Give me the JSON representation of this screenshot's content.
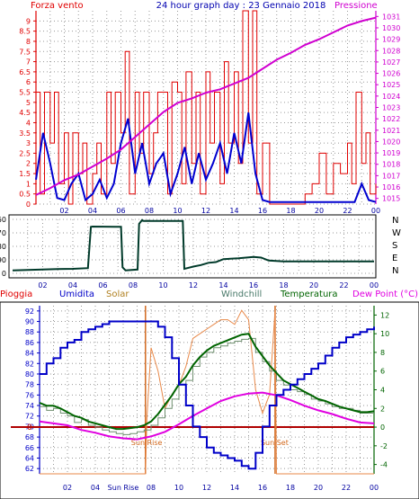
{
  "colors": {
    "wind": "#e00000",
    "wind_avg": "#0000d0",
    "pressure": "#d000d0",
    "direction": "#003a2a",
    "humidity": "#0000c8",
    "solar": "#e8894a",
    "windchill": "#6f8f6f",
    "temperature": "#006400",
    "dew_point": "#e000e0",
    "zero_line": "#b00000",
    "sun_marker": "#d2691e",
    "grid": "#9a9a9a"
  },
  "chart_data": [
    {
      "type": "line",
      "id": "wind_pressure",
      "title": "24 hour graph day : 23 Gennaio 2018",
      "left_axis_title": "Forza vento",
      "right_axis_title": "Pressione",
      "left_ylim": [
        0,
        9.5
      ],
      "left_ticks": [
        "0",
        "0.5",
        "1",
        "1.5",
        "2",
        "2.5",
        "3",
        "3.5",
        "4",
        "4.5",
        "5",
        "5.5",
        "6",
        "6.5",
        "7",
        "7.5",
        "8",
        "8.5",
        "9"
      ],
      "right_ylim": [
        1014.5,
        1031.5
      ],
      "right_ticks": [
        "1015",
        "1016",
        "1017",
        "1018",
        "1019",
        "1020",
        "1021",
        "1022",
        "1023",
        "1024",
        "1025",
        "1026",
        "1027",
        "1028",
        "1029",
        "1030",
        "1031"
      ],
      "x_ticks": [
        "02",
        "04",
        "06",
        "08",
        "10",
        "12",
        "14",
        "16",
        "18",
        "20",
        "22",
        "00"
      ],
      "grid": true,
      "series": [
        {
          "key": "pressure",
          "x": [
            0,
            1,
            2,
            3,
            4,
            5,
            6,
            7,
            8,
            9,
            10,
            11,
            12,
            13,
            14,
            15,
            16,
            17,
            18,
            19,
            20,
            21,
            22,
            23,
            24
          ],
          "values": [
            1015.3,
            1015.9,
            1016.6,
            1017.1,
            1017.8,
            1018.5,
            1019.3,
            1020.4,
            1021.5,
            1022.6,
            1023.4,
            1023.8,
            1024.3,
            1024.6,
            1025.1,
            1025.6,
            1026.4,
            1027.2,
            1027.8,
            1028.5,
            1029.0,
            1029.6,
            1030.2,
            1030.6,
            1030.9
          ]
        },
        {
          "key": "wind_avg",
          "x": [
            0,
            0.5,
            1,
            1.5,
            2,
            2.5,
            3,
            3.5,
            4,
            4.5,
            5,
            5.5,
            6,
            6.5,
            7,
            7.5,
            8,
            8.5,
            9,
            9.5,
            10,
            10.5,
            11,
            11.5,
            12,
            12.5,
            13,
            13.5,
            14,
            14.5,
            15,
            15.5,
            16,
            16.5,
            17,
            18,
            19,
            20,
            21,
            22,
            22.5,
            23,
            23.5,
            24
          ],
          "values": [
            1.2,
            3.5,
            2.0,
            0.3,
            0.2,
            1.0,
            1.5,
            0.2,
            0.5,
            1.2,
            0.3,
            1.0,
            3.0,
            4.2,
            1.5,
            3.0,
            1.0,
            2.0,
            2.5,
            0.5,
            1.5,
            2.8,
            1.0,
            2.5,
            1.2,
            2.0,
            3.0,
            1.5,
            3.5,
            2.0,
            4.5,
            1.5,
            0.2,
            0.1,
            0.1,
            0.1,
            0.1,
            0.1,
            0.1,
            0.1,
            0.1,
            1.0,
            0.2,
            0.1
          ]
        },
        {
          "key": "wind_gust",
          "x": [
            0,
            0.3,
            0.6,
            1,
            1.3,
            1.6,
            2,
            2.3,
            2.6,
            3,
            3.3,
            3.6,
            4,
            4.3,
            4.6,
            5,
            5.3,
            5.6,
            6,
            6.3,
            6.6,
            7,
            7.3,
            7.6,
            8,
            8.3,
            8.6,
            9,
            9.3,
            9.6,
            10,
            10.3,
            10.6,
            11,
            11.3,
            11.6,
            12,
            12.3,
            12.6,
            13,
            13.3,
            13.6,
            14,
            14.3,
            14.6,
            15,
            15.3,
            15.6,
            16,
            16.5,
            17,
            17.5,
            18,
            18.5,
            19,
            19.5,
            20,
            20.5,
            21,
            21.5,
            22,
            22.3,
            22.6,
            23,
            23.3,
            23.6,
            24
          ],
          "values": [
            5.5,
            0.5,
            5.5,
            3.0,
            5.5,
            1.0,
            3.5,
            0.0,
            3.5,
            1.5,
            3.0,
            0.0,
            1.5,
            3.0,
            0.5,
            5.5,
            2.0,
            5.5,
            3.5,
            7.5,
            0.5,
            5.5,
            2.5,
            5.5,
            1.5,
            3.5,
            5.5,
            5.5,
            0.5,
            6.0,
            5.5,
            1.0,
            6.5,
            2.0,
            5.5,
            0.5,
            6.5,
            3.0,
            5.5,
            1.0,
            7.0,
            3.0,
            6.5,
            2.0,
            9.5,
            3.0,
            9.5,
            0.5,
            3.0,
            0.0,
            0.0,
            0.0,
            0.0,
            0.0,
            0.5,
            1.0,
            2.5,
            0.5,
            2.0,
            1.5,
            3.0,
            1.0,
            5.5,
            2.0,
            3.5,
            0.5,
            1.0
          ]
        }
      ]
    },
    {
      "type": "line",
      "id": "wind_direction",
      "left_ylim": [
        0,
        360
      ],
      "left_ticks": [
        "0",
        "90",
        "180",
        "270",
        "360"
      ],
      "right_labels": [
        "N",
        "W",
        "S",
        "E",
        "N"
      ],
      "x_ticks": [
        "02",
        "04",
        "06",
        "08",
        "10",
        "12",
        "14",
        "16",
        "18",
        "20",
        "22",
        "00"
      ],
      "grid": true,
      "series": [
        {
          "key": "direction",
          "x": [
            0,
            1,
            2,
            3,
            4,
            5,
            5.2,
            5.3,
            7.2,
            7.3,
            7.5,
            8.3,
            8.4,
            8.6,
            8.7,
            11.3,
            11.4,
            11.6,
            12,
            12.5,
            13,
            13.5,
            14,
            15,
            16,
            16.5,
            17,
            18,
            20,
            22,
            24
          ],
          "values": [
            20,
            22,
            25,
            28,
            30,
            35,
            310,
            312,
            310,
            40,
            20,
            25,
            330,
            355,
            350,
            350,
            30,
            35,
            45,
            55,
            70,
            75,
            95,
            100,
            110,
            105,
            85,
            80,
            80,
            80,
            80
          ]
        }
      ]
    },
    {
      "type": "line",
      "id": "climate",
      "labels": {
        "rain": "Pioggia",
        "humidity": "Umidita",
        "solar": "Solar",
        "windchill": "Windchill",
        "temperature": "Temperatura",
        "dew_point": "Dew Point (°C)"
      },
      "left_ylim": [
        61,
        93
      ],
      "left_ticks": [
        "62",
        "64",
        "66",
        "68",
        "70",
        "72",
        "74",
        "76",
        "78",
        "80",
        "82",
        "84",
        "86",
        "88",
        "90",
        "92"
      ],
      "right_ylim": [
        -5,
        13
      ],
      "right_ticks": [
        "-4",
        "-2",
        "0",
        "2",
        "4",
        "6",
        "8",
        "10",
        "12"
      ],
      "zero_label": "0",
      "x_ticks": [
        "02",
        "04",
        "Sun Rise",
        "08",
        "10",
        "12",
        "14",
        "16",
        "18",
        "20",
        "22",
        "00"
      ],
      "annotations": [
        {
          "text": "Sun Rise",
          "x": 7.6
        },
        {
          "text": "Sun Set",
          "x": 16.9
        }
      ],
      "grid": true,
      "series": [
        {
          "key": "humidity",
          "x": [
            0,
            0.5,
            1,
            1.5,
            2,
            2.5,
            3,
            3.5,
            4,
            4.5,
            5,
            5.5,
            6,
            6.5,
            7,
            7.5,
            8,
            8.5,
            9,
            9.5,
            10,
            10.5,
            11,
            11.5,
            12,
            12.5,
            13,
            13.5,
            14,
            14.5,
            15,
            15.5,
            16,
            16.5,
            17,
            17.5,
            18,
            18.5,
            19,
            19.5,
            20,
            20.5,
            21,
            21.5,
            22,
            22.5,
            23,
            23.5,
            24
          ],
          "values": [
            80,
            82,
            83,
            85,
            86,
            86.5,
            88,
            88.5,
            89,
            89.5,
            90,
            90,
            90,
            90,
            90,
            90,
            90,
            89,
            87,
            83,
            78,
            74,
            70,
            68,
            66,
            65,
            64.5,
            64,
            63.5,
            62.5,
            62,
            65,
            70,
            74,
            76,
            77,
            78,
            79,
            80,
            81,
            82,
            83.5,
            85,
            86,
            87,
            87.5,
            88,
            88.5,
            89
          ]
        },
        {
          "key": "solar",
          "x": [
            0,
            7.6,
            7.7,
            8.0,
            8.5,
            9.0,
            9.5,
            10,
            10.5,
            11,
            11.5,
            12,
            12.5,
            13,
            13.5,
            14,
            14.5,
            15,
            15.5,
            16,
            16.5,
            16.9,
            17.0,
            24
          ],
          "values": [
            -5,
            -5,
            1.0,
            8.5,
            6.0,
            2.0,
            3.5,
            4.5,
            6.5,
            9.5,
            10.0,
            10.5,
            11.0,
            11.5,
            11.5,
            11.0,
            12.5,
            11.5,
            4.0,
            1.5,
            3.5,
            12.5,
            -5,
            -5
          ]
        },
        {
          "key": "windchill",
          "x": [
            0,
            0.5,
            1,
            1.5,
            2,
            2.5,
            3,
            3.5,
            4,
            4.5,
            5,
            5.5,
            6,
            6.5,
            7,
            7.5,
            8,
            8.5,
            9,
            9.5,
            10,
            10.5,
            11,
            11.5,
            12,
            12.5,
            13,
            13.5,
            14,
            14.5,
            15,
            15.5,
            16,
            16.5,
            17,
            17.5,
            18,
            18.5,
            19,
            19.5,
            20,
            20.5,
            21,
            21.5,
            22,
            22.5,
            23,
            23.5,
            24
          ],
          "values": [
            2.2,
            1.8,
            2.0,
            1.5,
            1.2,
            0.5,
            0.8,
            0.2,
            0.0,
            -0.3,
            -0.5,
            -0.7,
            -0.8,
            -0.7,
            -0.5,
            -0.3,
            0.2,
            1.0,
            2.0,
            3.0,
            4.5,
            5.0,
            6.5,
            7.5,
            8.0,
            8.5,
            8.7,
            9.0,
            9.2,
            9.4,
            9.5,
            8.0,
            7.0,
            6.0,
            5.0,
            4.5,
            4.0,
            3.8,
            3.5,
            3.0,
            2.8,
            2.5,
            2.2,
            2.0,
            2.0,
            1.8,
            1.5,
            1.5,
            1.5
          ]
        },
        {
          "key": "temperature",
          "x": [
            0,
            0.5,
            1,
            1.5,
            2,
            2.5,
            3,
            3.5,
            4,
            4.5,
            5,
            5.5,
            6,
            6.5,
            7,
            7.5,
            8,
            8.5,
            9,
            9.5,
            10,
            10.5,
            11,
            11.5,
            12,
            12.5,
            13,
            13.5,
            14,
            14.5,
            15,
            15.5,
            16,
            16.5,
            17,
            17.5,
            18,
            18.5,
            19,
            19.5,
            20,
            20.5,
            21,
            21.5,
            22,
            22.5,
            23,
            23.5,
            24
          ],
          "values": [
            2.6,
            2.3,
            2.3,
            2.0,
            1.6,
            1.2,
            1.0,
            0.6,
            0.4,
            0.2,
            0.0,
            -0.2,
            -0.2,
            -0.1,
            0.0,
            0.2,
            0.6,
            1.4,
            2.4,
            3.4,
            4.6,
            5.4,
            6.6,
            7.5,
            8.2,
            8.7,
            9.0,
            9.3,
            9.6,
            9.9,
            10.0,
            8.6,
            7.6,
            6.6,
            5.8,
            5.0,
            4.6,
            4.2,
            3.8,
            3.4,
            3.0,
            2.8,
            2.5,
            2.2,
            2.0,
            1.8,
            1.6,
            1.6,
            1.7
          ]
        },
        {
          "key": "dew_point",
          "x": [
            0,
            1,
            2,
            3,
            4,
            5,
            6,
            7,
            8,
            9,
            10,
            11,
            12,
            13,
            14,
            15,
            16,
            17,
            18,
            19,
            20,
            21,
            22,
            23,
            24
          ],
          "values": [
            0.6,
            0.4,
            0.2,
            -0.3,
            -0.6,
            -1.0,
            -1.2,
            -1.3,
            -1.0,
            -0.5,
            0.3,
            1.2,
            2.0,
            2.8,
            3.3,
            3.6,
            3.7,
            3.4,
            2.9,
            2.3,
            1.8,
            1.4,
            0.9,
            0.5,
            0.4
          ]
        }
      ]
    }
  ]
}
